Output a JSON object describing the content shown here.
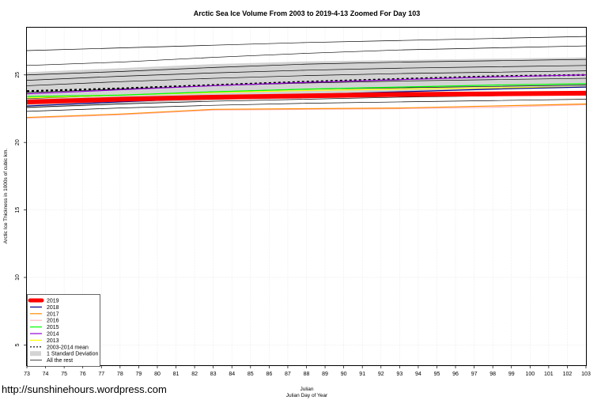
{
  "chart_data": {
    "type": "line",
    "title": "Arctic Sea Ice Volume From 2003 to 2019-4-13 Zoomed For Day 103",
    "xlabel": "Julian",
    "xlabel2": "Julian Day of Year",
    "ylabel": "Arctic Ice Thickness in 1000s of cubic km.",
    "xlim": [
      73,
      103
    ],
    "ylim": [
      3.5,
      28.5
    ],
    "x_ticks": [
      73,
      74,
      75,
      76,
      77,
      78,
      79,
      80,
      81,
      82,
      83,
      84,
      85,
      86,
      87,
      88,
      89,
      90,
      91,
      92,
      93,
      94,
      95,
      96,
      97,
      98,
      99,
      100,
      101,
      102,
      103
    ],
    "y_ticks": [
      5,
      10,
      15,
      20,
      25
    ],
    "grid": true,
    "legend_position": "bottom-left",
    "x": [
      73,
      78,
      83,
      88,
      93,
      98,
      103
    ],
    "std_band": {
      "name": "1 Standard Deviation",
      "color": "#d3d3d3",
      "lower": [
        22.5,
        22.8,
        23.1,
        23.4,
        23.7,
        23.9,
        24.1
      ],
      "upper": [
        25.2,
        25.5,
        25.8,
        26.0,
        26.1,
        26.2,
        26.3
      ]
    },
    "series": [
      {
        "name": "2019",
        "color": "#ff0000",
        "width": 6,
        "values": [
          23.0,
          23.2,
          23.35,
          23.45,
          23.55,
          23.6,
          23.65
        ]
      },
      {
        "name": "2018",
        "color": "#00008b",
        "width": 1.2,
        "values": [
          22.7,
          23.0,
          23.3,
          23.55,
          23.75,
          23.95,
          24.1
        ]
      },
      {
        "name": "2017",
        "color": "#ff8c00",
        "width": 1.2,
        "values": [
          21.85,
          22.1,
          22.45,
          22.5,
          22.55,
          22.7,
          22.85
        ]
      },
      {
        "name": "2016",
        "color": "#ffb6c1",
        "width": 1.2,
        "values": [
          21.8,
          22.05,
          22.4,
          22.45,
          22.5,
          22.6,
          22.8
        ]
      },
      {
        "name": "2015",
        "color": "#00ff00",
        "width": 1.2,
        "values": [
          23.4,
          23.5,
          23.75,
          23.95,
          24.1,
          24.25,
          24.35
        ]
      },
      {
        "name": "2014",
        "color": "#9400d3",
        "width": 1.2,
        "values": [
          23.6,
          23.9,
          24.2,
          24.45,
          24.65,
          24.85,
          25.0
        ]
      },
      {
        "name": "2013",
        "color": "#ffff00",
        "width": 1.2,
        "values": [
          23.3,
          23.5,
          23.7,
          23.85,
          23.95,
          24.05,
          24.1
        ]
      },
      {
        "name": "2003-2014 mean",
        "color": "#000000",
        "width": 2.2,
        "dash": "3,3",
        "values": [
          23.8,
          24.0,
          24.25,
          24.5,
          24.7,
          24.9,
          25.0
        ]
      }
    ],
    "other_years": {
      "name": "All the rest",
      "color": "#000000",
      "lines": [
        [
          26.8,
          27.0,
          27.2,
          27.4,
          27.55,
          27.7,
          27.85
        ],
        [
          25.7,
          25.95,
          26.3,
          26.6,
          26.85,
          27.0,
          27.15
        ],
        [
          25.0,
          25.25,
          25.55,
          25.8,
          25.95,
          26.05,
          26.15
        ],
        [
          24.6,
          24.9,
          25.15,
          25.35,
          25.5,
          25.6,
          25.7
        ],
        [
          24.2,
          24.5,
          24.75,
          24.95,
          25.1,
          25.2,
          25.3
        ],
        [
          23.7,
          23.95,
          24.2,
          24.4,
          24.55,
          24.65,
          24.75
        ],
        [
          23.25,
          23.5,
          23.75,
          23.95,
          24.05,
          24.15,
          24.25
        ],
        [
          22.6,
          22.85,
          23.05,
          23.2,
          23.35,
          23.45,
          23.55
        ],
        [
          22.3,
          22.55,
          22.75,
          22.9,
          23.0,
          23.1,
          23.2
        ]
      ]
    },
    "legend": [
      "2019",
      "2018",
      "2017",
      "2016",
      "2015",
      "2014",
      "2013",
      "2003-2014 mean",
      "1 Standard Deviation",
      "All the rest"
    ]
  },
  "watermark": "http://sunshinehours.wordpress.com"
}
